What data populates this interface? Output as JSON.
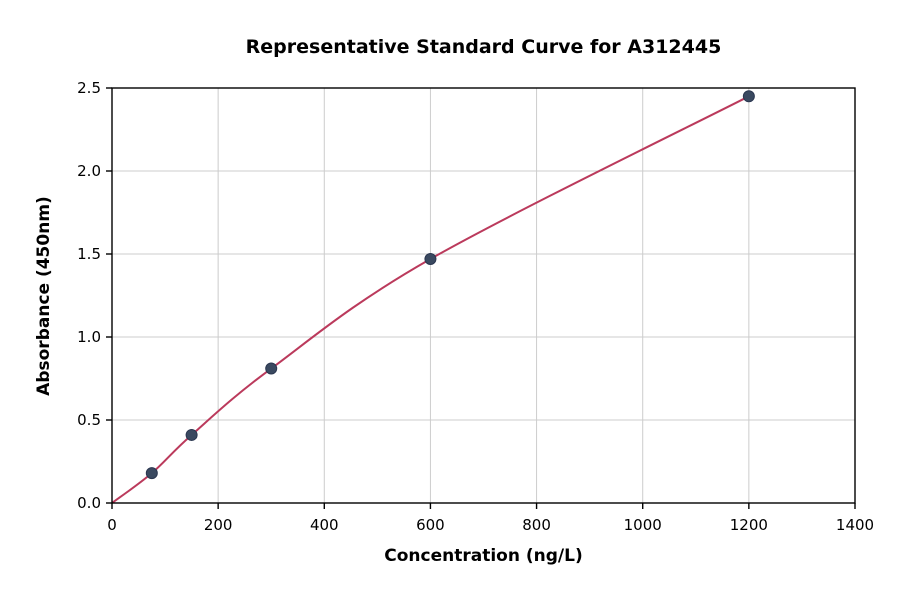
{
  "chart_data": {
    "type": "scatter",
    "title": "Representative Standard Curve for A312445",
    "xlabel": "Concentration (ng/L)",
    "ylabel": "Absorbance (450nm)",
    "xlim": [
      0,
      1400
    ],
    "ylim": [
      0,
      2.5
    ],
    "x_ticks": [
      0,
      200,
      400,
      600,
      800,
      1000,
      1200,
      1400
    ],
    "y_ticks": [
      0.0,
      0.5,
      1.0,
      1.5,
      2.0,
      2.5
    ],
    "grid": true,
    "legend": "none",
    "series": [
      {
        "name": "standard-curve-fit",
        "kind": "line",
        "x": [
          0,
          75,
          150,
          300,
          600,
          1200
        ],
        "y": [
          0.0,
          0.18,
          0.41,
          0.81,
          1.47,
          2.45
        ],
        "color": "#bb3a5c",
        "width": 2
      },
      {
        "name": "standard-points",
        "kind": "scatter",
        "x": [
          75,
          150,
          300,
          600,
          1200
        ],
        "y": [
          0.18,
          0.41,
          0.81,
          1.47,
          2.45
        ],
        "color": "#3a4960",
        "edge_color": "#2b3750",
        "radius": 5.5
      }
    ],
    "colors": {
      "grid": "#cccccc",
      "spine": "#000000",
      "background": "#ffffff"
    }
  }
}
